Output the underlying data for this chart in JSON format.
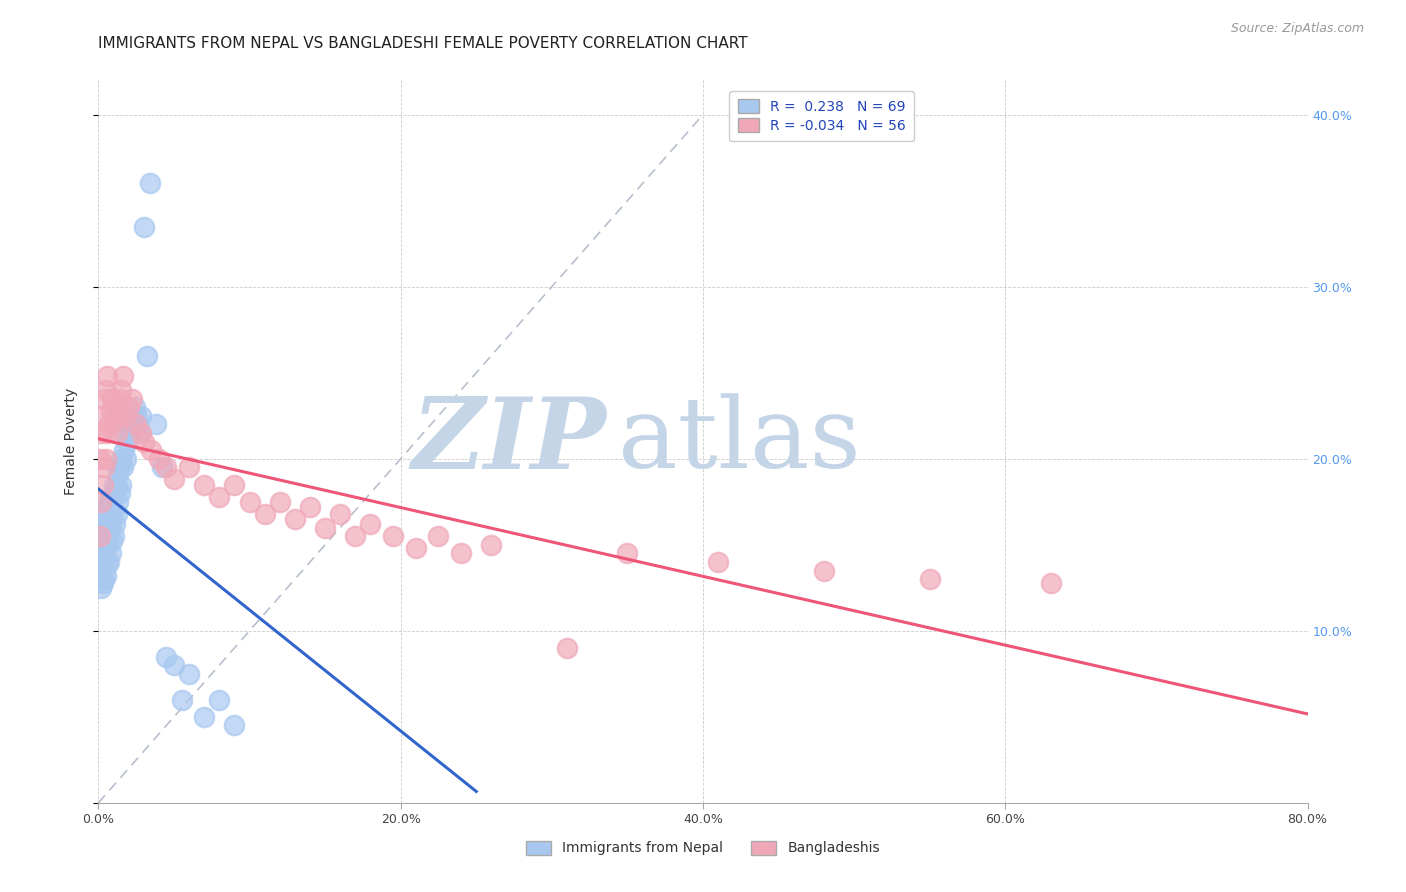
{
  "title": "IMMIGRANTS FROM NEPAL VS BANGLADESHI FEMALE POVERTY CORRELATION CHART",
  "source": "Source: ZipAtlas.com",
  "ylabel": "Female Poverty",
  "xlim": [
    0.0,
    0.8
  ],
  "ylim": [
    0.0,
    0.42
  ],
  "xticks": [
    0.0,
    0.2,
    0.4,
    0.6,
    0.8
  ],
  "xticklabels": [
    "0.0%",
    "20.0%",
    "40.0%",
    "60.0%",
    "80.0%"
  ],
  "yticklabels_right": [
    "10.0%",
    "20.0%",
    "30.0%",
    "40.0%"
  ],
  "legend_label1": "Immigrants from Nepal",
  "legend_label2": "Bangladeshis",
  "R1": 0.238,
  "N1": 69,
  "R2": -0.034,
  "N2": 56,
  "color1": "#a8c8f0",
  "color2": "#f0a8b8",
  "trendline1_color": "#3366cc",
  "trendline2_color": "#ee5577",
  "refline_color": "#b0b8c8",
  "background_color": "#ffffff",
  "watermark_zip": "ZIP",
  "watermark_atlas": "atlas",
  "watermark_color_zip": "#c0d0e8",
  "watermark_color_atlas": "#c0d0e8",
  "title_fontsize": 11,
  "axis_label_fontsize": 10,
  "tick_fontsize": 9,
  "legend_fontsize": 10,
  "source_fontsize": 9,
  "nepal_x": [
    0.001,
    0.001,
    0.001,
    0.001,
    0.002,
    0.002,
    0.002,
    0.002,
    0.003,
    0.003,
    0.003,
    0.003,
    0.004,
    0.004,
    0.004,
    0.005,
    0.005,
    0.005,
    0.005,
    0.006,
    0.006,
    0.006,
    0.007,
    0.007,
    0.007,
    0.008,
    0.008,
    0.008,
    0.009,
    0.009,
    0.01,
    0.01,
    0.01,
    0.011,
    0.011,
    0.012,
    0.012,
    0.013,
    0.013,
    0.014,
    0.014,
    0.015,
    0.015,
    0.016,
    0.017,
    0.018,
    0.018,
    0.019,
    0.02,
    0.021,
    0.022,
    0.023,
    0.024,
    0.025,
    0.026,
    0.027,
    0.028,
    0.03,
    0.032,
    0.034,
    0.038,
    0.042,
    0.045,
    0.05,
    0.055,
    0.06,
    0.07,
    0.08,
    0.09
  ],
  "nepal_y": [
    0.13,
    0.145,
    0.155,
    0.165,
    0.125,
    0.135,
    0.148,
    0.165,
    0.128,
    0.14,
    0.155,
    0.168,
    0.13,
    0.145,
    0.158,
    0.132,
    0.148,
    0.162,
    0.172,
    0.138,
    0.155,
    0.17,
    0.14,
    0.158,
    0.175,
    0.145,
    0.162,
    0.178,
    0.152,
    0.168,
    0.155,
    0.17,
    0.185,
    0.162,
    0.18,
    0.168,
    0.185,
    0.175,
    0.192,
    0.18,
    0.195,
    0.185,
    0.2,
    0.195,
    0.205,
    0.2,
    0.215,
    0.21,
    0.22,
    0.215,
    0.225,
    0.22,
    0.23,
    0.225,
    0.22,
    0.215,
    0.225,
    0.335,
    0.26,
    0.36,
    0.22,
    0.195,
    0.085,
    0.08,
    0.06,
    0.075,
    0.05,
    0.06,
    0.045
  ],
  "bangladeshi_x": [
    0.001,
    0.001,
    0.002,
    0.002,
    0.003,
    0.003,
    0.004,
    0.004,
    0.005,
    0.005,
    0.006,
    0.006,
    0.007,
    0.008,
    0.009,
    0.01,
    0.011,
    0.012,
    0.013,
    0.014,
    0.015,
    0.016,
    0.018,
    0.02,
    0.022,
    0.025,
    0.028,
    0.03,
    0.035,
    0.04,
    0.045,
    0.05,
    0.06,
    0.07,
    0.08,
    0.09,
    0.1,
    0.11,
    0.12,
    0.13,
    0.14,
    0.15,
    0.16,
    0.17,
    0.18,
    0.195,
    0.21,
    0.225,
    0.24,
    0.26,
    0.31,
    0.35,
    0.41,
    0.48,
    0.55,
    0.63
  ],
  "bangladeshi_y": [
    0.155,
    0.2,
    0.175,
    0.215,
    0.185,
    0.225,
    0.195,
    0.235,
    0.2,
    0.24,
    0.215,
    0.248,
    0.22,
    0.228,
    0.235,
    0.222,
    0.23,
    0.215,
    0.225,
    0.235,
    0.24,
    0.248,
    0.225,
    0.23,
    0.235,
    0.22,
    0.215,
    0.21,
    0.205,
    0.2,
    0.195,
    0.188,
    0.195,
    0.185,
    0.178,
    0.185,
    0.175,
    0.168,
    0.175,
    0.165,
    0.172,
    0.16,
    0.168,
    0.155,
    0.162,
    0.155,
    0.148,
    0.155,
    0.145,
    0.15,
    0.09,
    0.145,
    0.14,
    0.135,
    0.13,
    0.128
  ]
}
